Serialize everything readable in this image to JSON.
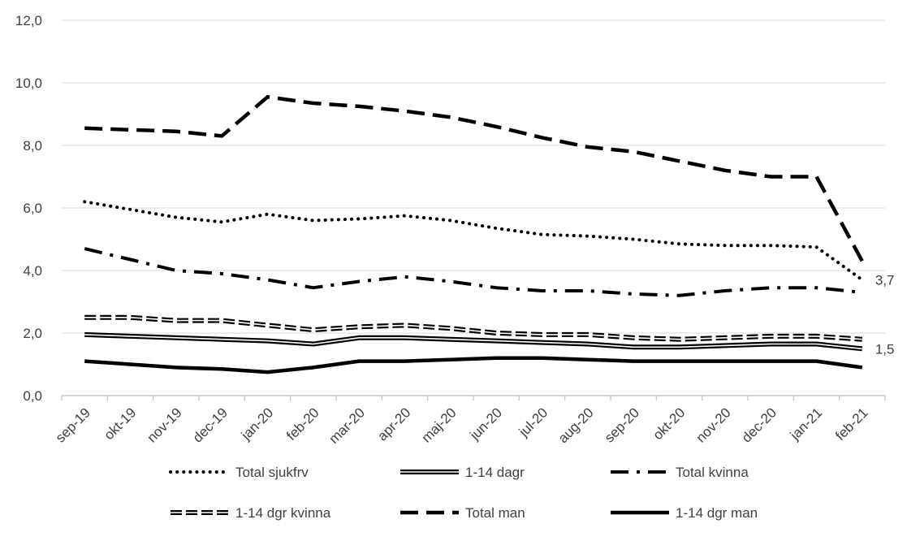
{
  "chart_data": {
    "type": "line",
    "title": "",
    "xlabel": "",
    "ylabel": "",
    "ylim": [
      0,
      12
    ],
    "yticks": [
      "0,0",
      "2,0",
      "4,0",
      "6,0",
      "8,0",
      "10,0",
      "12,0"
    ],
    "ytick_values": [
      0,
      2,
      4,
      6,
      8,
      10,
      12
    ],
    "grid": true,
    "legend_position": "bottom",
    "categories": [
      "sep-19",
      "okt-19",
      "nov-19",
      "dec-19",
      "jan-20",
      "feb-20",
      "mar-20",
      "apr-20",
      "maj-20",
      "jun-20",
      "jul-20",
      "aug-20",
      "sep-20",
      "okt-20",
      "nov-20",
      "dec-20",
      "jan-21",
      "feb-21"
    ],
    "series": [
      {
        "name": "Total sjukfrv",
        "style": "dotted",
        "color": "#000000",
        "values": [
          6.2,
          5.95,
          5.7,
          5.55,
          5.8,
          5.6,
          5.65,
          5.75,
          5.6,
          5.35,
          5.15,
          5.1,
          5.0,
          4.85,
          4.8,
          4.8,
          4.75,
          3.7
        ]
      },
      {
        "name": "1-14 dagr",
        "style": "double",
        "color": "#000000",
        "values": [
          1.95,
          1.9,
          1.85,
          1.8,
          1.75,
          1.65,
          1.85,
          1.85,
          1.8,
          1.75,
          1.7,
          1.65,
          1.55,
          1.55,
          1.6,
          1.65,
          1.65,
          1.5
        ]
      },
      {
        "name": "Total kvinna",
        "style": "dashdot",
        "color": "#000000",
        "values": [
          4.7,
          4.35,
          4.0,
          3.9,
          3.7,
          3.45,
          3.65,
          3.8,
          3.65,
          3.45,
          3.35,
          3.35,
          3.25,
          3.2,
          3.35,
          3.45,
          3.45,
          3.3
        ]
      },
      {
        "name": "1-14 dgr kvinna",
        "style": "double-dashed",
        "color": "#000000",
        "values": [
          2.5,
          2.5,
          2.4,
          2.4,
          2.25,
          2.1,
          2.2,
          2.25,
          2.15,
          2.0,
          1.95,
          1.95,
          1.85,
          1.8,
          1.85,
          1.9,
          1.9,
          1.8
        ]
      },
      {
        "name": "Total man",
        "style": "dashed",
        "color": "#000000",
        "values": [
          8.55,
          8.5,
          8.45,
          8.3,
          9.55,
          9.35,
          9.25,
          9.1,
          8.9,
          8.6,
          8.25,
          7.95,
          7.8,
          7.5,
          7.2,
          7.0,
          7.0,
          4.3
        ]
      },
      {
        "name": "1-14 dgr man",
        "style": "solid",
        "color": "#000000",
        "values": [
          1.1,
          1.0,
          0.9,
          0.85,
          0.75,
          0.9,
          1.1,
          1.1,
          1.15,
          1.2,
          1.2,
          1.15,
          1.1,
          1.1,
          1.1,
          1.1,
          1.1,
          0.9
        ]
      }
    ],
    "annotations": [
      {
        "text": "3,7",
        "series": "Total sjukfrv",
        "category": "feb-21"
      },
      {
        "text": "1,5",
        "series": "1-14 dagr",
        "category": "feb-21"
      }
    ]
  }
}
